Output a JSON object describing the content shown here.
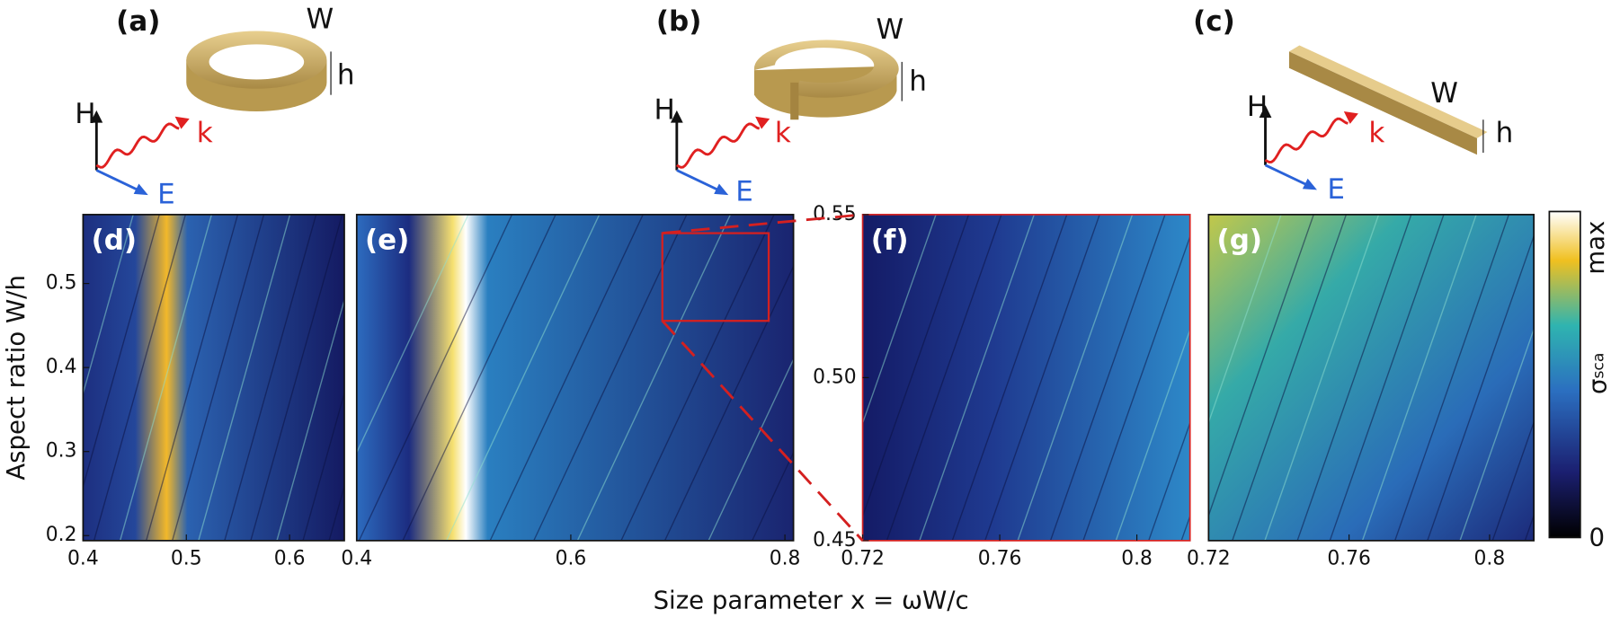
{
  "figure": {
    "x_label": "Size parameter x = ωW/c",
    "y_label": "Aspect ratio  W/h"
  },
  "schematics": [
    {
      "label": "(a)",
      "W": "W",
      "h": "h",
      "H": "H",
      "k": "k",
      "E": "E"
    },
    {
      "label": "(b)",
      "W": "W",
      "h": "h",
      "H": "H",
      "k": "k",
      "E": "E"
    },
    {
      "label": "(c)",
      "W": "W",
      "h": "h",
      "H": "H",
      "k": "k",
      "E": "E"
    }
  ],
  "colorbar": {
    "max_label": "max",
    "min_label": "0",
    "label": "σ",
    "label_sub": "sca"
  },
  "chart_data": [
    {
      "type": "heatmap",
      "label": "(d)",
      "xlim": [
        0.4,
        0.653
      ],
      "ylim": [
        0.194,
        0.582
      ],
      "xticks": [
        0.4,
        0.5,
        0.6
      ],
      "yticks": [
        0.2,
        0.3,
        0.4,
        0.5
      ]
    },
    {
      "type": "heatmap",
      "label": "(e)",
      "xlim": [
        0.4,
        0.808
      ],
      "ylim": [
        0.194,
        0.582
      ],
      "xticks": [
        0.4,
        0.6,
        0.8
      ]
    },
    {
      "type": "heatmap",
      "label": "(f)",
      "xlim": [
        0.72,
        0.8155
      ],
      "ylim": [
        0.45,
        0.55
      ],
      "xticks": [
        0.72,
        0.76,
        0.8
      ],
      "yticks": [
        0.45,
        {
          "value": 0.5,
          "label": "0.50"
        },
        0.55
      ]
    },
    {
      "type": "heatmap",
      "label": "(g)",
      "xlim": [
        0.72,
        0.8126
      ],
      "xticks": [
        0.72,
        0.76,
        0.8
      ]
    }
  ]
}
